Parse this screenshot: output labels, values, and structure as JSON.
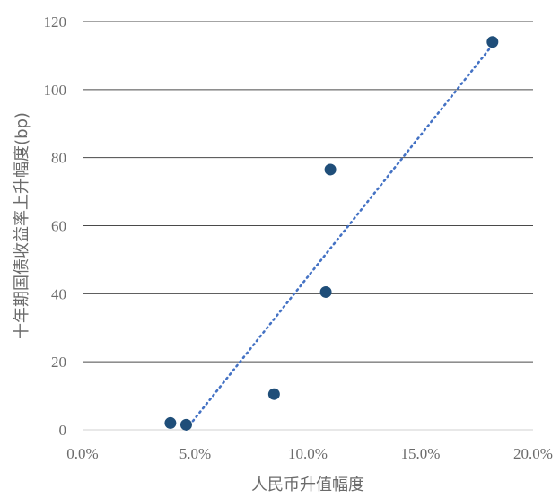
{
  "chart_data": {
    "type": "scatter",
    "title": "",
    "xlabel": "人民币升值幅度",
    "ylabel": "十年期国债收益率上升幅度(bp)",
    "xlim": [
      0,
      0.2
    ],
    "ylim": [
      0,
      120
    ],
    "x_ticks": [
      0,
      0.05,
      0.1,
      0.15,
      0.2
    ],
    "x_tick_labels": [
      "0.0%",
      "5.0%",
      "10.0%",
      "15.0%",
      "20.0%"
    ],
    "y_ticks": [
      0,
      20,
      40,
      60,
      80,
      100,
      120
    ],
    "y_tick_labels": [
      "0",
      "20",
      "40",
      "60",
      "80",
      "100",
      "120"
    ],
    "grid": "horizontal",
    "legend": "none",
    "point_color": "#1f4e79",
    "trendline": {
      "type": "linear",
      "style": "dotted",
      "color": "#4472c4",
      "x_range": [
        0.046,
        0.182
      ]
    },
    "points": [
      {
        "x": 0.039,
        "y": 2
      },
      {
        "x": 0.046,
        "y": 1.5
      },
      {
        "x": 0.085,
        "y": 10.5
      },
      {
        "x": 0.108,
        "y": 40.5
      },
      {
        "x": 0.11,
        "y": 76.5
      },
      {
        "x": 0.182,
        "y": 114
      }
    ]
  }
}
